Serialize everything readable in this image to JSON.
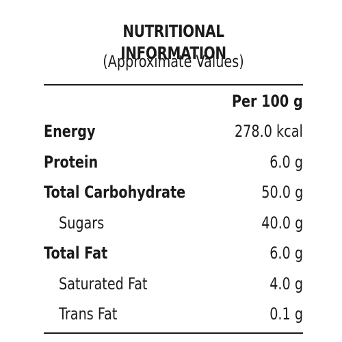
{
  "header": {
    "title": "NUTRITIONAL INFORMATION",
    "subtitle": "(Approximate Values)"
  },
  "table": {
    "column_header": "Per 100 g",
    "rows": [
      {
        "label": "Energy",
        "value": "278.0 kcal",
        "bold": true,
        "indent": false
      },
      {
        "label": "Protein",
        "value": "6.0 g",
        "bold": true,
        "indent": false
      },
      {
        "label": "Total Carbohydrate",
        "value": "50.0 g",
        "bold": true,
        "indent": false
      },
      {
        "label": "Sugars",
        "value": "40.0 g",
        "bold": false,
        "indent": true
      },
      {
        "label": "Total Fat",
        "value": "6.0 g",
        "bold": true,
        "indent": false
      },
      {
        "label": "Saturated Fat",
        "value": "4.0 g",
        "bold": false,
        "indent": true
      },
      {
        "label": "Trans Fat",
        "value": "0.1 g",
        "bold": false,
        "indent": true
      }
    ]
  }
}
